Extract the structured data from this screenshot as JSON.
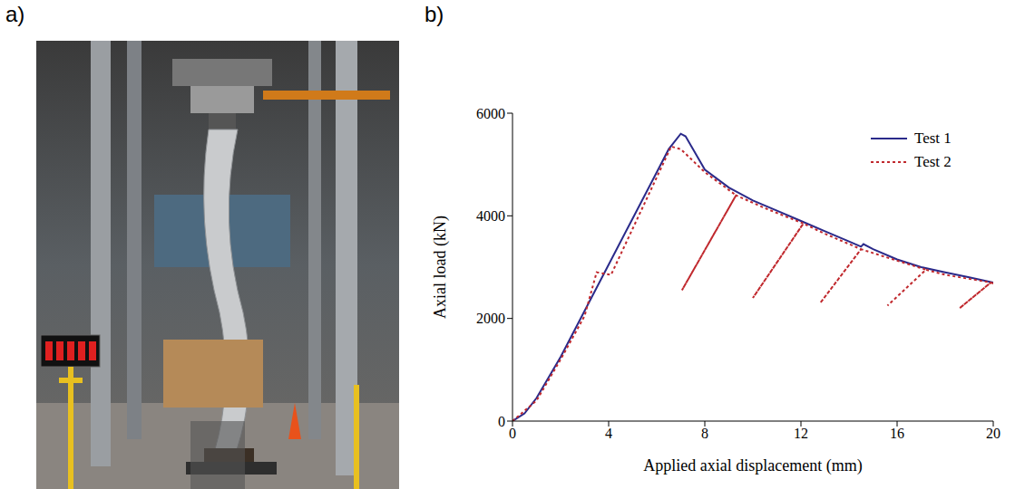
{
  "panel_labels": [
    "a)",
    "b)"
  ],
  "chart_data": {
    "type": "line",
    "xlabel": "Applied axial displacement (mm)",
    "ylabel": "Axial load (kN)",
    "xlim": [
      0,
      20
    ],
    "xticks": [
      0,
      4,
      8,
      12,
      16,
      20
    ],
    "ylim": [
      0,
      6000
    ],
    "yticks": [
      0,
      2000,
      4000,
      6000
    ],
    "grid": false,
    "legend": "upper right",
    "series": [
      {
        "name": "Test 1",
        "color": "#2a2a8a",
        "line_style": "solid",
        "x": [
          0,
          0.5,
          1,
          2,
          3,
          4,
          5,
          6,
          6.5,
          7,
          7.2,
          8,
          9,
          10,
          11,
          12,
          13,
          14,
          14.5,
          14.6,
          15,
          16,
          17,
          18,
          19,
          20
        ],
        "values": [
          0,
          150,
          450,
          1250,
          2150,
          3050,
          3950,
          4850,
          5300,
          5600,
          5550,
          4900,
          4550,
          4300,
          4100,
          3900,
          3700,
          3500,
          3400,
          3450,
          3350,
          3150,
          3000,
          2900,
          2800,
          2700
        ]
      },
      {
        "name": "Test 2",
        "color": "#c0282d",
        "line_style": "dotted",
        "x": [
          0,
          1,
          2,
          3,
          3.5,
          4.1,
          4.3,
          5,
          6,
          6.6,
          7,
          8,
          9.3,
          7.05,
          9.3,
          10.5,
          12.1,
          10,
          12.1,
          13,
          14.5,
          12.8,
          14.5,
          15.5,
          17.2,
          15.6,
          17.2,
          18,
          19.9,
          18.6,
          19.9,
          20
        ],
        "values": [
          0,
          400,
          1200,
          2050,
          2900,
          2850,
          3050,
          3750,
          4750,
          5350,
          5300,
          4850,
          4400,
          2550,
          4400,
          4150,
          3850,
          2400,
          3850,
          3650,
          3350,
          2300,
          3350,
          3200,
          2950,
          2250,
          2950,
          2850,
          2700,
          2200,
          2700,
          2680
        ]
      }
    ]
  }
}
